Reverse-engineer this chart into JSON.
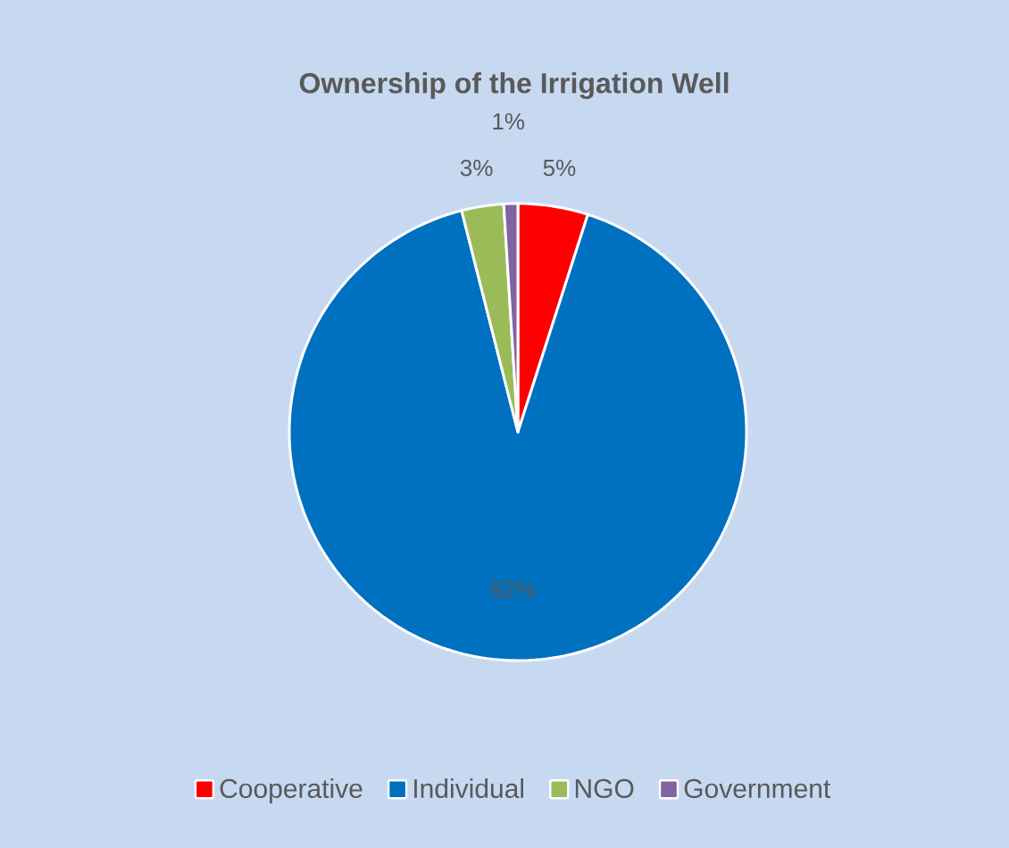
{
  "chart_data": {
    "type": "pie",
    "title": "Ownership of the Irrigation Well",
    "categories": [
      "Cooperative",
      "Individual",
      "NGO",
      "Government"
    ],
    "values": [
      5,
      92,
      3,
      1
    ],
    "value_labels": [
      "5%",
      "92%",
      "3%",
      "1%"
    ],
    "colors": [
      "#ff0000",
      "#0070c0",
      "#9bbb59",
      "#8064a2"
    ],
    "legend": "bottom"
  }
}
